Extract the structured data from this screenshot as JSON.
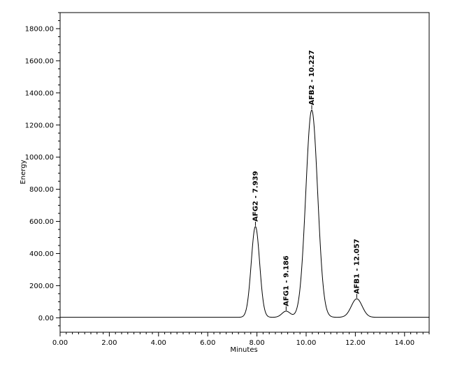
{
  "chart_data": {
    "type": "line",
    "title": "",
    "xlabel": "Minutes",
    "ylabel": "Energy",
    "xlim": [
      0,
      15
    ],
    "ylim": [
      -90,
      1900
    ],
    "x_ticks": [
      {
        "value": 0,
        "label": "0.00"
      },
      {
        "value": 2,
        "label": "2.00"
      },
      {
        "value": 4,
        "label": "4.00"
      },
      {
        "value": 6,
        "label": "6.00"
      },
      {
        "value": 8,
        "label": "8.00"
      },
      {
        "value": 10,
        "label": "10.00"
      },
      {
        "value": 12,
        "label": "12.00"
      },
      {
        "value": 14,
        "label": "14.00"
      }
    ],
    "y_ticks": [
      {
        "value": 0,
        "label": "0.00"
      },
      {
        "value": 200,
        "label": "200.00"
      },
      {
        "value": 400,
        "label": "400.00"
      },
      {
        "value": 600,
        "label": "600.00"
      },
      {
        "value": 800,
        "label": "800.00"
      },
      {
        "value": 1000,
        "label": "1000.00"
      },
      {
        "value": 1200,
        "label": "1200.00"
      },
      {
        "value": 1400,
        "label": "1400.00"
      },
      {
        "value": 1600,
        "label": "1600.00"
      },
      {
        "value": 1800,
        "label": "1800.00"
      }
    ],
    "grid": false,
    "line_color": "#000000",
    "peaks": [
      {
        "label": "AFG2 - 7.939",
        "time": 7.939,
        "height": 565,
        "sigma": 0.17
      },
      {
        "label": "AFG1 - 9.186",
        "time": 9.186,
        "height": 38,
        "sigma": 0.17
      },
      {
        "label": "AFB2 - 10.227",
        "time": 10.227,
        "height": 1290,
        "sigma": 0.24
      },
      {
        "label": "AFB1 - 12.057",
        "time": 12.057,
        "height": 115,
        "sigma": 0.22
      }
    ],
    "baseline": 3
  }
}
